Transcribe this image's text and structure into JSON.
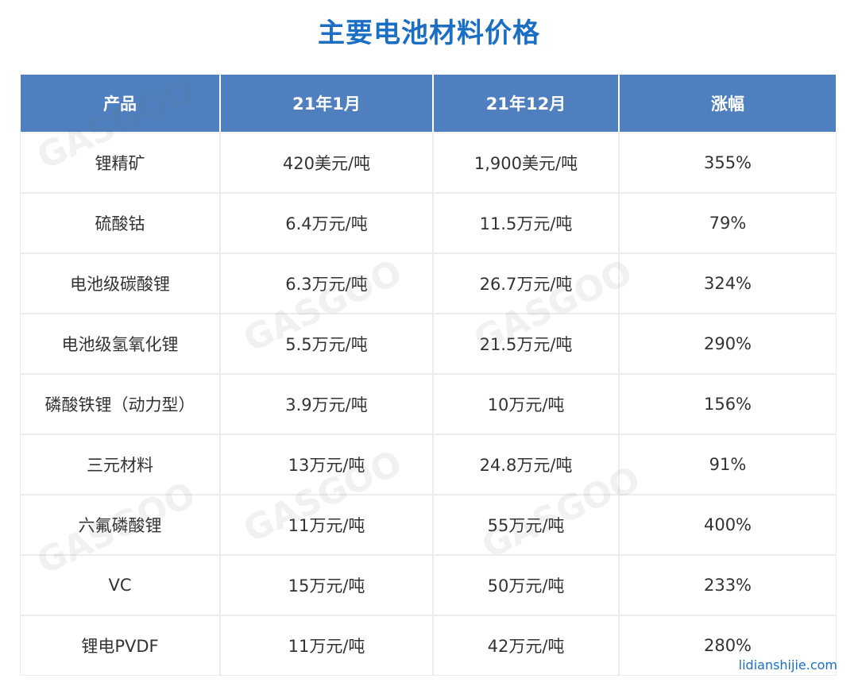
{
  "title": "主要电池材料价格",
  "table": {
    "headers": [
      "产品",
      "21年1月",
      "21年12月",
      "涨幅"
    ],
    "rows": [
      [
        "锂精矿",
        "420美元/吨",
        "1,900美元/吨",
        "355%"
      ],
      [
        "硫酸钴",
        "6.4万元/吨",
        "11.5万元/吨",
        "79%"
      ],
      [
        "电池级碳酸锂",
        "6.3万元/吨",
        "26.7万元/吨",
        "324%"
      ],
      [
        "电池级氢氧化锂",
        "5.5万元/吨",
        "21.5万元/吨",
        "290%"
      ],
      [
        "磷酸铁锂（动力型）",
        "3.9万元/吨",
        "10万元/吨",
        "156%"
      ],
      [
        "三元材料",
        "13万元/吨",
        "24.8万元/吨",
        "91%"
      ],
      [
        "六氟磷酸锂",
        "11万元/吨",
        "55万元/吨",
        "400%"
      ],
      [
        "VC",
        "15万元/吨",
        "50万元/吨",
        "233%"
      ],
      [
        "锂电PVDF",
        "11万元/吨",
        "42万元/吨",
        "280%"
      ]
    ]
  },
  "watermark_text": "GASGOO",
  "site": "lidianshijie.com",
  "colors": {
    "title": "#1a6fc4",
    "header_bg": "#4f7fbf",
    "header_text": "#ffffff",
    "cell_text": "#333333"
  }
}
